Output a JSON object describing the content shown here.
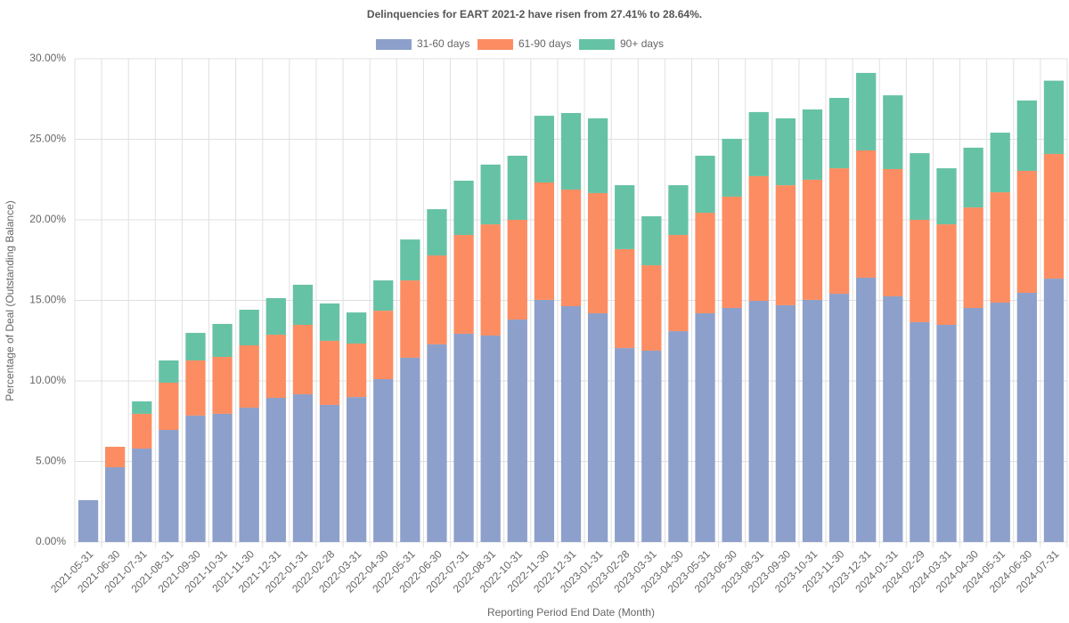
{
  "chart_data": {
    "type": "stacked-bar",
    "title": "Delinquencies for EART 2021-2 have risen from 27.41% to 28.64%.",
    "x_label": "Reporting Period End Date (Month)",
    "y_label": "Percentage of Deal (Outstanding Balance)",
    "categories": [
      "2021-05-31",
      "2021-06-30",
      "2021-07-31",
      "2021-08-31",
      "2021-09-30",
      "2021-10-31",
      "2021-11-30",
      "2021-12-31",
      "2022-01-31",
      "2022-02-28",
      "2022-03-31",
      "2022-04-30",
      "2022-05-31",
      "2022-06-30",
      "2022-07-31",
      "2022-08-31",
      "2022-10-31",
      "2022-11-30",
      "2022-12-31",
      "2023-01-31",
      "2023-02-28",
      "2023-03-31",
      "2023-04-30",
      "2023-05-31",
      "2023-06-30",
      "2023-08-31",
      "2023-09-30",
      "2023-10-31",
      "2023-11-30",
      "2023-12-31",
      "2024-01-31",
      "2024-02-29",
      "2024-03-31",
      "2024-04-30",
      "2024-05-31",
      "2024-06-30",
      "2024-07-31"
    ],
    "series": [
      {
        "name": "31-60 days",
        "color": "#8da0cb",
        "values": [
          2.6,
          4.64,
          5.8,
          6.96,
          7.85,
          7.96,
          8.34,
          8.95,
          9.17,
          8.51,
          9.0,
          10.11,
          11.44,
          12.27,
          12.93,
          12.82,
          13.81,
          15.03,
          14.64,
          14.2,
          12.04,
          11.88,
          13.09,
          14.2,
          14.53,
          14.97,
          14.7,
          15.03,
          15.41,
          16.41,
          15.25,
          13.65,
          13.48,
          14.53,
          14.86,
          15.47,
          16.35
        ]
      },
      {
        "name": "61-90 days",
        "color": "#fc8d62",
        "values": [
          0,
          1.27,
          2.16,
          2.93,
          3.42,
          3.53,
          3.87,
          3.92,
          4.31,
          3.98,
          3.32,
          4.25,
          4.8,
          5.52,
          6.13,
          6.9,
          6.19,
          7.29,
          7.24,
          7.46,
          6.14,
          5.3,
          5.97,
          6.24,
          6.91,
          7.74,
          7.45,
          7.46,
          7.79,
          7.9,
          7.9,
          6.35,
          6.24,
          6.24,
          6.85,
          7.57,
          7.74
        ]
      },
      {
        "name": "90+ days",
        "color": "#66c2a5",
        "values": [
          0,
          0,
          0.77,
          1.38,
          1.71,
          2.05,
          2.21,
          2.27,
          2.49,
          2.32,
          1.93,
          1.88,
          2.54,
          2.87,
          3.37,
          3.71,
          3.98,
          4.14,
          4.75,
          4.64,
          3.97,
          3.04,
          3.09,
          3.54,
          3.59,
          3.98,
          4.15,
          4.36,
          4.37,
          4.81,
          4.58,
          4.14,
          3.48,
          3.71,
          3.7,
          4.37,
          4.55
        ]
      }
    ],
    "ylim": [
      0,
      30
    ],
    "yticks": [
      {
        "value": 0,
        "label": "0.00%"
      },
      {
        "value": 5,
        "label": "5.00%"
      },
      {
        "value": 10,
        "label": "10.00%"
      },
      {
        "value": 15,
        "label": "15.00%"
      },
      {
        "value": 20,
        "label": "20.00%"
      },
      {
        "value": 25,
        "label": "25.00%"
      },
      {
        "value": 30,
        "label": "30.00%"
      }
    ],
    "grid": true,
    "legend": "top"
  }
}
